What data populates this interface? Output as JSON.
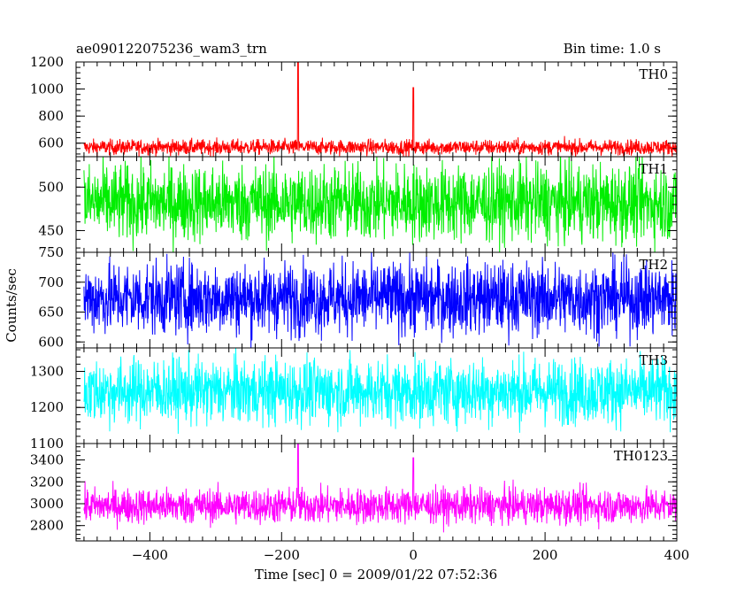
{
  "header": {
    "title": "ae090122075236_wam3_trn",
    "bin_time": "Bin time: 1.0 s"
  },
  "axes": {
    "ylabel": "Counts/sec",
    "xlabel": "Time [sec] 0 = 2009/01/22 07:52:36"
  },
  "chart_data": {
    "type": "line",
    "x_range": [
      -512,
      400
    ],
    "x_ticks": [
      -400,
      -200,
      0,
      200,
      400
    ],
    "x_tick_labels": [
      "−400",
      "−200",
      "0",
      "200",
      "400"
    ],
    "series": [
      {
        "name": "TH0",
        "color": "#ff0000",
        "ylim": [
          500,
          1200
        ],
        "y_ticks": [
          600,
          800,
          1000,
          1200
        ],
        "y_tick_labels": [
          "600",
          "800",
          "1000",
          "1200"
        ],
        "baseline": 570,
        "noise": 28,
        "spikes": [
          {
            "x": -175,
            "y": 1200
          },
          {
            "x": 0,
            "y": 1010
          }
        ]
      },
      {
        "name": "TH1",
        "color": "#00ee00",
        "ylim": [
          425,
          535
        ],
        "y_ticks": [
          450,
          500
        ],
        "y_tick_labels": [
          "450",
          "500"
        ],
        "baseline": 482,
        "noise": 22,
        "spikes": []
      },
      {
        "name": "TH2",
        "color": "#0000ff",
        "ylim": [
          590,
          750
        ],
        "y_ticks": [
          600,
          650,
          700,
          750
        ],
        "y_tick_labels": [
          "600",
          "650",
          "700",
          "750"
        ],
        "baseline": 673,
        "noise": 30,
        "spikes": []
      },
      {
        "name": "TH3",
        "color": "#00ffff",
        "ylim": [
          1100,
          1365
        ],
        "y_ticks": [
          1100,
          1200,
          1300
        ],
        "y_tick_labels": [
          "1100",
          "1200",
          "1300"
        ],
        "baseline": 1245,
        "noise": 45,
        "spikes": []
      },
      {
        "name": "TH0123",
        "color": "#ff00ff",
        "ylim": [
          2660,
          3550
        ],
        "y_ticks": [
          2800,
          3000,
          3200,
          3400
        ],
        "y_tick_labels": [
          "2800",
          "3000",
          "3200",
          "3400"
        ],
        "baseline": 2980,
        "noise": 80,
        "spikes": [
          {
            "x": -175,
            "y": 3550
          },
          {
            "x": 0,
            "y": 3420
          }
        ]
      }
    ]
  }
}
